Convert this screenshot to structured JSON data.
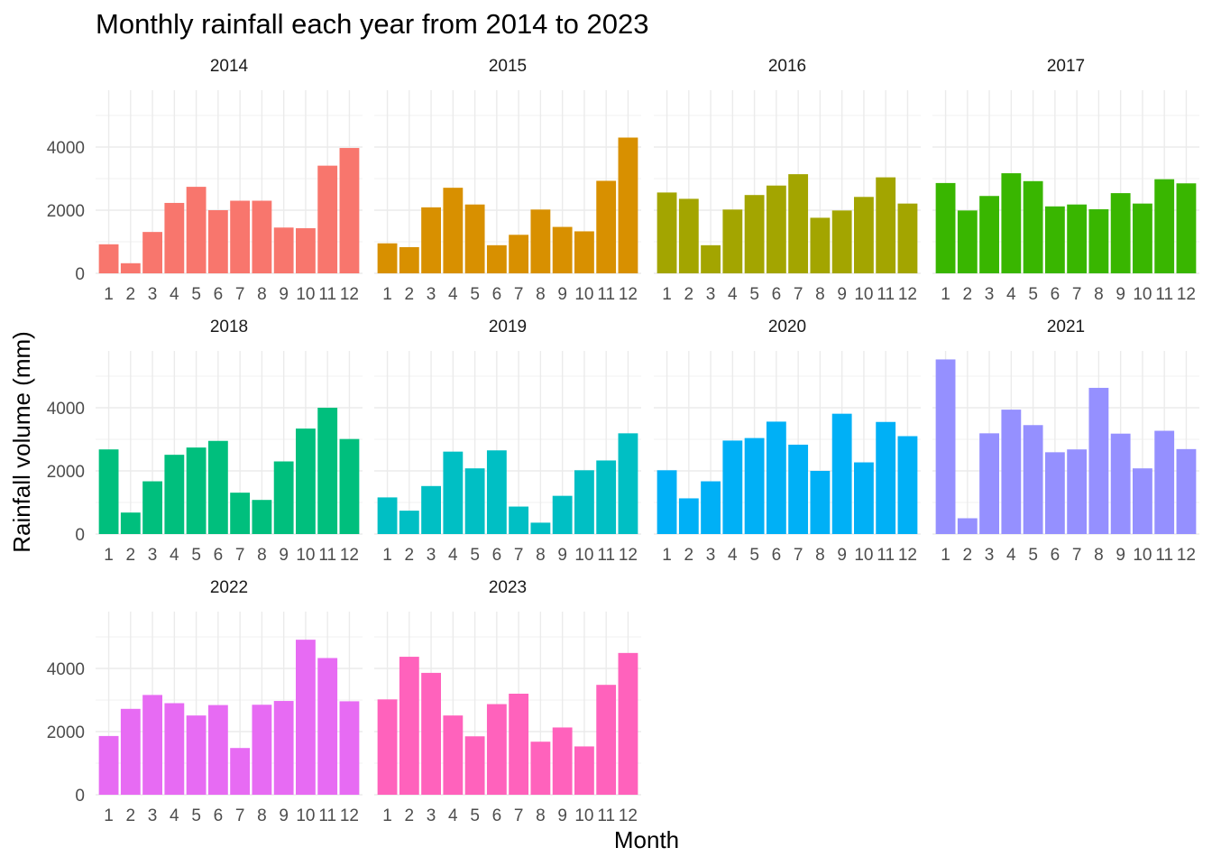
{
  "chart_data": {
    "type": "bar",
    "title": "Monthly rainfall each year from 2014 to 2023",
    "xlabel": "Month",
    "ylabel": "Rainfall volume (mm)",
    "x_categories": [
      "1",
      "2",
      "3",
      "4",
      "5",
      "6",
      "7",
      "8",
      "9",
      "10",
      "11",
      "12"
    ],
    "y_ticks": [
      0,
      2000,
      4000
    ],
    "y_tick_labels": [
      "0",
      "2000",
      "4000"
    ],
    "ylim": [
      0,
      5800
    ],
    "grid": true,
    "legend": "none",
    "facet_columns": 4,
    "panels": [
      {
        "year": "2014",
        "color": "#F8766D",
        "values": [
          920,
          320,
          1310,
          2230,
          2740,
          2000,
          2300,
          2300,
          1450,
          1430,
          3410,
          3970
        ]
      },
      {
        "year": "2015",
        "color": "#D89000",
        "values": [
          950,
          830,
          2090,
          2710,
          2180,
          890,
          1220,
          2020,
          1470,
          1330,
          2930,
          4300
        ]
      },
      {
        "year": "2016",
        "color": "#A3A500",
        "values": [
          2560,
          2360,
          890,
          2020,
          2480,
          2780,
          3140,
          1760,
          1990,
          2420,
          3040,
          2210
        ]
      },
      {
        "year": "2017",
        "color": "#39B600",
        "values": [
          2860,
          1990,
          2450,
          3170,
          2920,
          2120,
          2180,
          2030,
          2540,
          2210,
          2980,
          2850
        ]
      },
      {
        "year": "2018",
        "color": "#00BF7D",
        "values": [
          2680,
          680,
          1670,
          2510,
          2740,
          2950,
          1310,
          1080,
          2300,
          3340,
          4000,
          3010
        ]
      },
      {
        "year": "2019",
        "color": "#00BFC4",
        "values": [
          1160,
          740,
          1520,
          2610,
          2080,
          2650,
          870,
          360,
          1210,
          2020,
          2330,
          3190
        ]
      },
      {
        "year": "2020",
        "color": "#00B0F6",
        "values": [
          2020,
          1130,
          1670,
          2960,
          3040,
          3560,
          2830,
          2000,
          3810,
          2270,
          3550,
          3100
        ]
      },
      {
        "year": "2021",
        "color": "#9590FF",
        "values": [
          5530,
          500,
          3190,
          3940,
          3450,
          2590,
          2680,
          4630,
          3180,
          2080,
          3270,
          2690
        ]
      },
      {
        "year": "2022",
        "color": "#E76BF3",
        "values": [
          1860,
          2720,
          3160,
          2900,
          2510,
          2840,
          1480,
          2850,
          2970,
          4910,
          4330,
          2960
        ]
      },
      {
        "year": "2023",
        "color": "#FF62BC",
        "values": [
          3020,
          4370,
          3860,
          2510,
          1850,
          2870,
          3200,
          1680,
          2130,
          1530,
          3480,
          4490
        ]
      }
    ]
  }
}
